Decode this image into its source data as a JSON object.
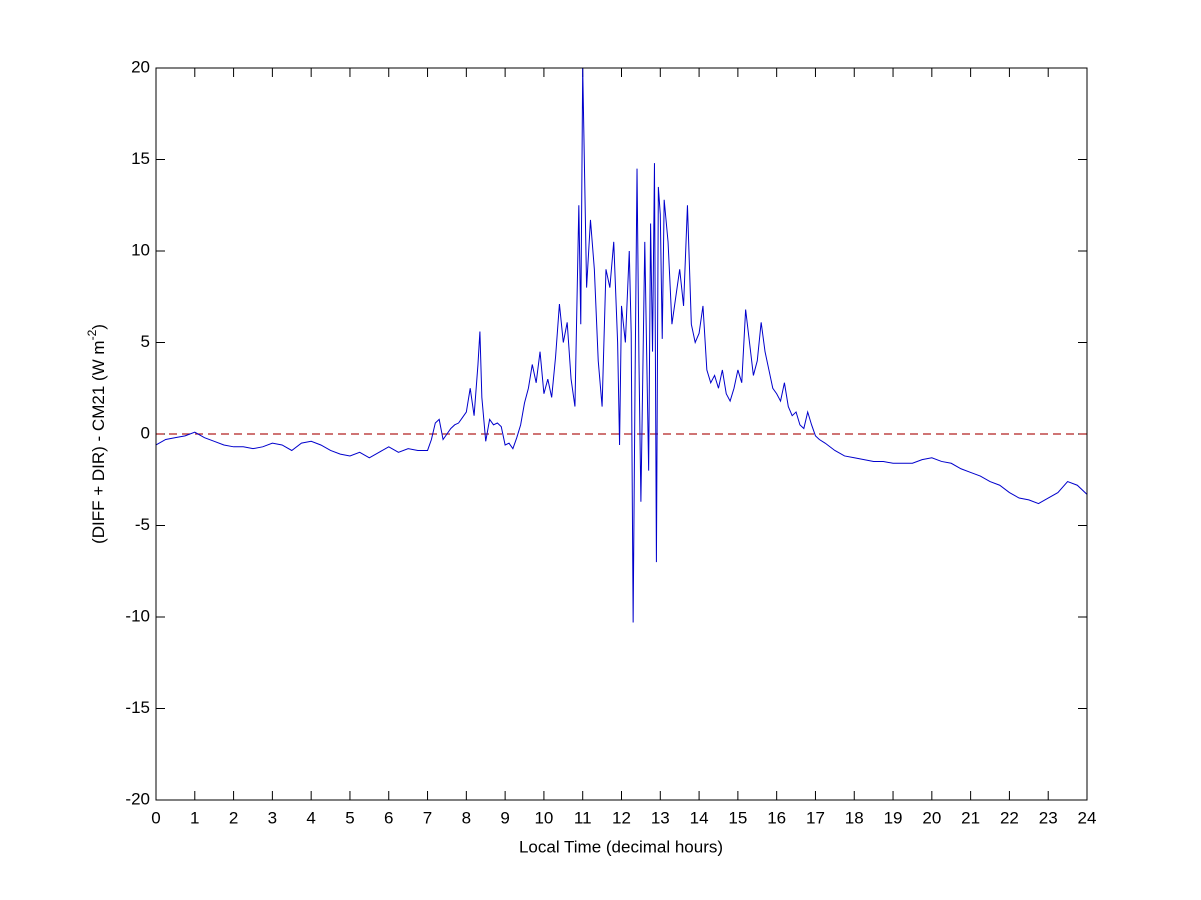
{
  "chart_data": {
    "type": "line",
    "xlabel": "Local Time (decimal hours)",
    "ylabel": {
      "text": "(DIFF + DIR) - CM21 (W m",
      "superscript": "-2",
      "suffix": ")"
    },
    "xlim": [
      0,
      24
    ],
    "xticks": [
      0,
      1,
      2,
      3,
      4,
      5,
      6,
      7,
      8,
      9,
      10,
      11,
      12,
      13,
      14,
      15,
      16,
      17,
      18,
      19,
      20,
      21,
      22,
      23,
      24
    ],
    "ylim": [
      -20,
      20
    ],
    "yticks": [
      -20,
      -15,
      -10,
      -5,
      0,
      5,
      10,
      15,
      20
    ],
    "hlines": [
      {
        "value": 0,
        "color": "#b22222"
      }
    ],
    "x": [
      0,
      0.25,
      0.5,
      0.75,
      1,
      1.25,
      1.5,
      1.75,
      2,
      2.25,
      2.5,
      2.75,
      3,
      3.25,
      3.5,
      3.75,
      4,
      4.25,
      4.5,
      4.75,
      5,
      5.25,
      5.5,
      5.75,
      6,
      6.25,
      6.5,
      6.75,
      7,
      7.1,
      7.2,
      7.3,
      7.4,
      7.5,
      7.6,
      7.7,
      7.8,
      7.9,
      8.0,
      8.1,
      8.2,
      8.3,
      8.35,
      8.4,
      8.5,
      8.6,
      8.7,
      8.8,
      8.9,
      9.0,
      9.1,
      9.2,
      9.3,
      9.4,
      9.5,
      9.6,
      9.7,
      9.8,
      9.9,
      10.0,
      10.1,
      10.2,
      10.3,
      10.4,
      10.5,
      10.6,
      10.7,
      10.8,
      10.9,
      10.95,
      11.0,
      11.05,
      11.1,
      11.2,
      11.3,
      11.4,
      11.5,
      11.6,
      11.7,
      11.8,
      11.9,
      11.95,
      12.0,
      12.1,
      12.2,
      12.25,
      12.3,
      12.35,
      12.4,
      12.45,
      12.5,
      12.6,
      12.7,
      12.75,
      12.8,
      12.85,
      12.9,
      12.95,
      13.0,
      13.05,
      13.1,
      13.2,
      13.3,
      13.4,
      13.5,
      13.6,
      13.7,
      13.8,
      13.9,
      14.0,
      14.1,
      14.2,
      14.3,
      14.4,
      14.5,
      14.6,
      14.7,
      14.8,
      14.9,
      15.0,
      15.1,
      15.2,
      15.3,
      15.4,
      15.5,
      15.6,
      15.7,
      15.8,
      15.9,
      16.0,
      16.1,
      16.2,
      16.3,
      16.4,
      16.5,
      16.6,
      16.7,
      16.8,
      16.9,
      17.0,
      17.1,
      17.25,
      17.5,
      17.75,
      18,
      18.25,
      18.5,
      18.75,
      19,
      19.25,
      19.5,
      19.75,
      20,
      20.25,
      20.5,
      20.75,
      21,
      21.25,
      21.5,
      21.75,
      22,
      22.25,
      22.5,
      22.75,
      23,
      23.25,
      23.5,
      23.75,
      24
    ],
    "series": [
      {
        "color": "#0000cc",
        "values": [
          -0.6,
          -0.3,
          -0.2,
          -0.1,
          0.1,
          -0.2,
          -0.4,
          -0.6,
          -0.7,
          -0.7,
          -0.8,
          -0.7,
          -0.5,
          -0.6,
          -0.9,
          -0.5,
          -0.4,
          -0.6,
          -0.9,
          -1.1,
          -1.2,
          -1.0,
          -1.3,
          -1.0,
          -0.7,
          -1.0,
          -0.8,
          -0.9,
          -0.9,
          -0.3,
          0.6,
          0.8,
          -0.3,
          0.0,
          0.3,
          0.5,
          0.6,
          0.9,
          1.2,
          2.5,
          1.0,
          3.8,
          5.6,
          2.0,
          -0.4,
          0.8,
          0.5,
          0.6,
          0.4,
          -0.6,
          -0.5,
          -0.8,
          -0.2,
          0.5,
          1.7,
          2.5,
          3.8,
          2.8,
          4.5,
          2.2,
          3.0,
          2.0,
          4.2,
          7.1,
          5.0,
          6.1,
          3.0,
          1.5,
          12.5,
          6.0,
          20.0,
          14.0,
          8.0,
          11.7,
          9.0,
          4.0,
          1.5,
          9.0,
          8.0,
          10.5,
          5.0,
          -0.6,
          7.0,
          5.0,
          10.0,
          5.5,
          -10.3,
          3.0,
          14.5,
          4.0,
          -3.7,
          10.5,
          -2.0,
          11.5,
          4.5,
          14.8,
          -7.0,
          13.5,
          12.0,
          5.2,
          12.8,
          10.5,
          6.0,
          7.5,
          9.0,
          7.0,
          12.5,
          6.0,
          5.0,
          5.5,
          7.0,
          3.5,
          2.8,
          3.2,
          2.5,
          3.5,
          2.2,
          1.8,
          2.5,
          3.5,
          2.8,
          6.8,
          5.0,
          3.2,
          4.0,
          6.1,
          4.5,
          3.5,
          2.5,
          2.2,
          1.8,
          2.8,
          1.5,
          1.0,
          1.2,
          0.5,
          0.3,
          1.2,
          0.5,
          -0.1,
          -0.3,
          -0.5,
          -0.9,
          -1.2,
          -1.3,
          -1.4,
          -1.5,
          -1.5,
          -1.6,
          -1.6,
          -1.6,
          -1.4,
          -1.3,
          -1.5,
          -1.6,
          -1.9,
          -2.1,
          -2.3,
          -2.6,
          -2.8,
          -3.2,
          -3.5,
          -3.6,
          -3.8,
          -3.5,
          -3.2,
          -2.6,
          -2.8,
          -3.3
        ]
      }
    ]
  }
}
